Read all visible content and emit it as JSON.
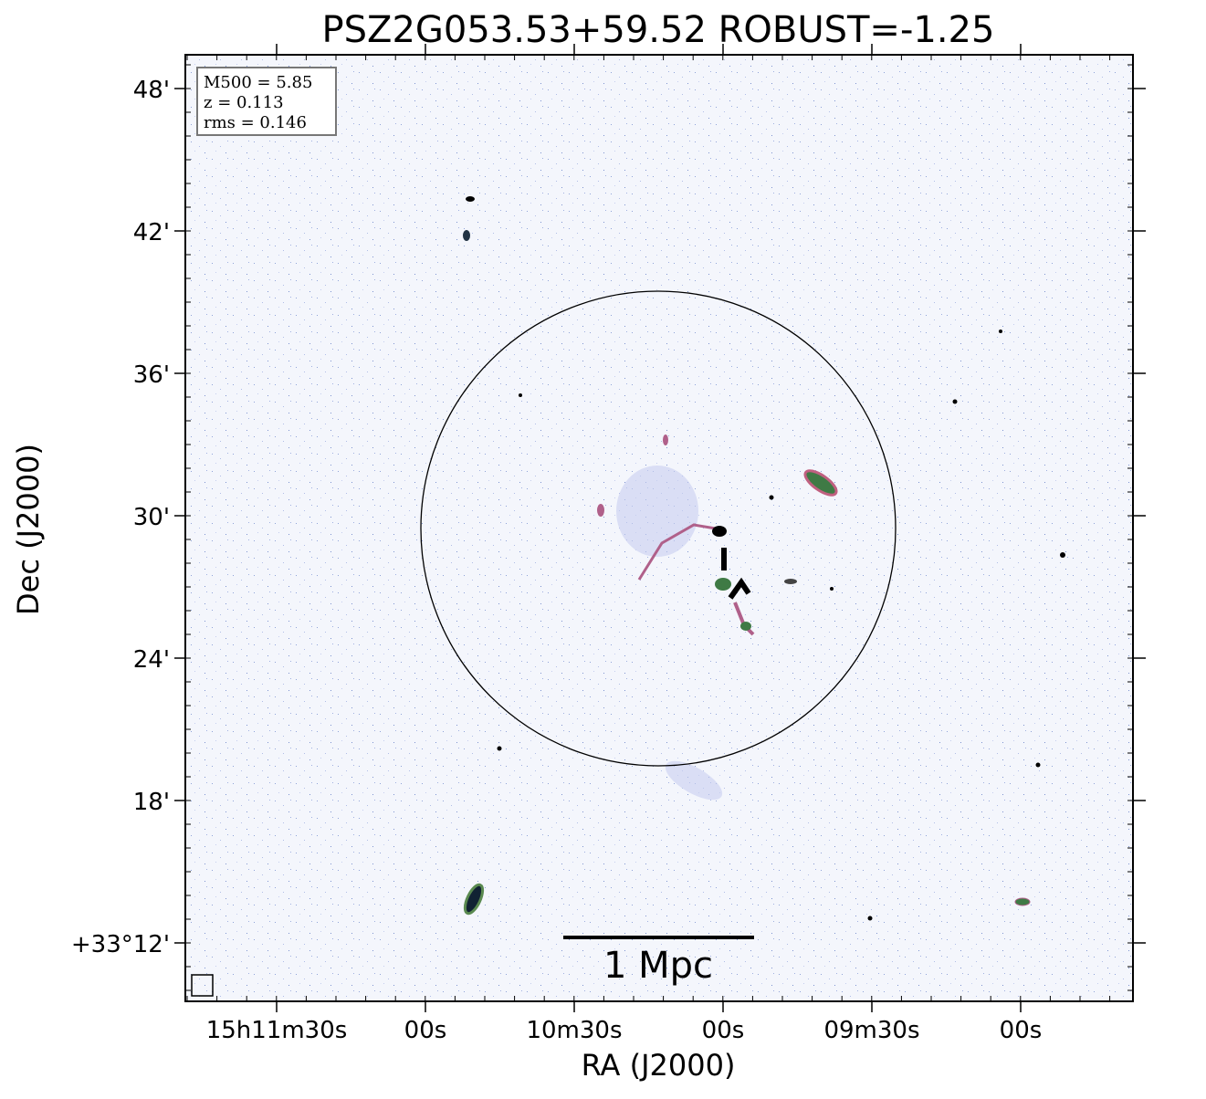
{
  "title": "PSZ2G053.53+59.52 ROBUST=-1.25",
  "x_axis": {
    "label": "RA (J2000)",
    "ticks": [
      "15h11m30s",
      "00s",
      "10m30s",
      "00s",
      "09m30s",
      "00s"
    ]
  },
  "y_axis": {
    "label": "Dec (J2000)",
    "ticks": [
      "48'",
      "42'",
      "36'",
      "30'",
      "24'",
      "18'",
      "+33°12'"
    ]
  },
  "info": [
    "M500 = 5.85",
    "z = 0.113",
    "rms = 0.146"
  ],
  "scale_bar": "1 Mpc"
}
